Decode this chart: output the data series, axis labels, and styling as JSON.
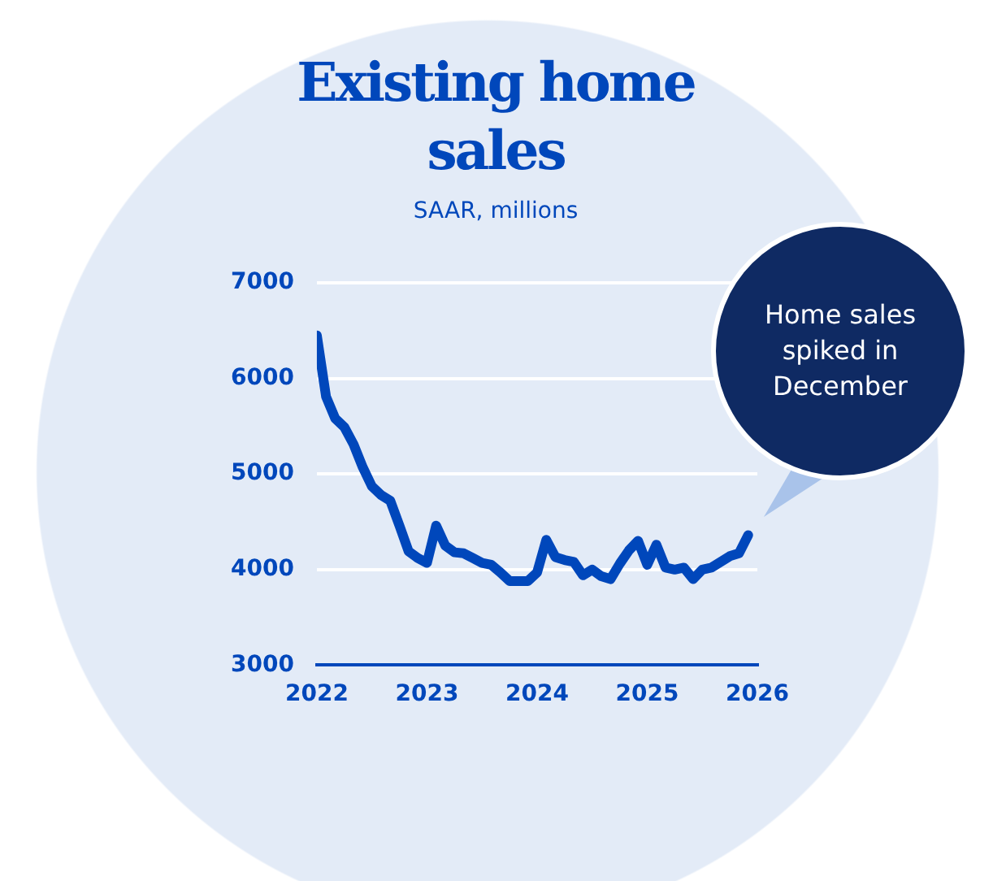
{
  "chart_data": {
    "type": "line",
    "title": "Existing home sales",
    "subtitle": "SAAR, millions",
    "x": [
      "2022-01",
      "2022-02",
      "2022-03",
      "2022-04",
      "2022-05",
      "2022-06",
      "2022-07",
      "2022-08",
      "2022-09",
      "2022-10",
      "2022-11",
      "2022-12",
      "2023-01",
      "2023-02",
      "2023-03",
      "2023-04",
      "2023-05",
      "2023-06",
      "2023-07",
      "2023-08",
      "2023-09",
      "2023-10",
      "2023-11",
      "2023-12",
      "2024-01",
      "2024-02",
      "2024-03",
      "2024-04",
      "2024-05",
      "2024-06",
      "2024-07",
      "2024-08",
      "2024-09",
      "2024-10",
      "2024-11",
      "2024-12",
      "2025-01",
      "2025-02",
      "2025-03",
      "2025-04",
      "2025-05",
      "2025-06",
      "2025-07",
      "2025-08",
      "2025-09",
      "2025-10",
      "2025-11",
      "2025-12"
    ],
    "series": [
      {
        "color": "#0047bb",
        "values": [
          6450,
          5810,
          5580,
          5490,
          5310,
          5070,
          4870,
          4780,
          4720,
          4460,
          4190,
          4120,
          4070,
          4460,
          4250,
          4180,
          4170,
          4120,
          4070,
          4050,
          3970,
          3880,
          3880,
          3880,
          3970,
          4310,
          4130,
          4100,
          4080,
          3940,
          4000,
          3930,
          3900,
          4060,
          4200,
          4300,
          4050,
          4260,
          4020,
          4000,
          4020,
          3900,
          4000,
          4020,
          4080,
          4140,
          4170,
          4360
        ]
      }
    ],
    "xlim": [
      "2022-01",
      "2026-01"
    ],
    "xticks": [
      "2022",
      "2023",
      "2024",
      "2025",
      "2026"
    ],
    "ylim": [
      3000,
      7000
    ],
    "yticks": [
      3000,
      4000,
      5000,
      6000,
      7000
    ],
    "grid": "y",
    "legend": false,
    "marker": "none",
    "line_style": "solid",
    "annotations": [
      "Home sales spiked in December"
    ]
  }
}
